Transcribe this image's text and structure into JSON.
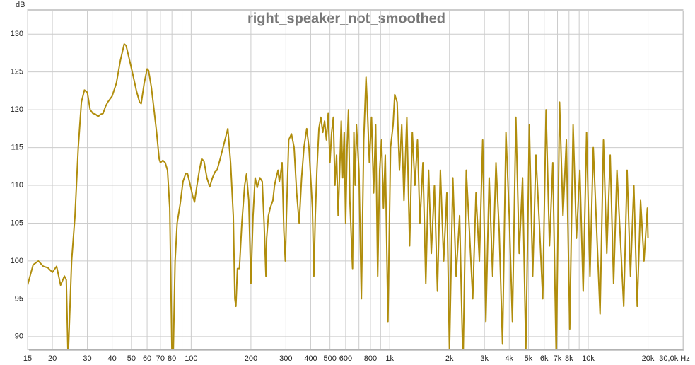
{
  "chart_data": {
    "type": "line",
    "title": "right_speaker_not_smoothed",
    "y_label": "dB",
    "xscale": "log",
    "grid": true,
    "color": "#b08d0c",
    "xlim": [
      15,
      30000
    ],
    "ylim": [
      88.3,
      133.2
    ],
    "yticks": [
      90,
      95,
      100,
      105,
      110,
      115,
      120,
      125,
      130
    ],
    "xticks": [
      15,
      20,
      30,
      40,
      50,
      60,
      70,
      80,
      100,
      200,
      300,
      400,
      500,
      600,
      800,
      {
        "value": 1000,
        "label": "1k"
      },
      {
        "value": 2000,
        "label": "2k"
      },
      {
        "value": 3000,
        "label": "3k"
      },
      {
        "value": 4000,
        "label": "4k"
      },
      {
        "value": 5000,
        "label": "5k"
      },
      {
        "value": 6000,
        "label": "6k"
      },
      {
        "value": 7000,
        "label": "7k"
      },
      {
        "value": 8000,
        "label": "8k"
      },
      {
        "value": 10000,
        "label": "10k"
      },
      {
        "value": 20000,
        "label": "20k"
      },
      {
        "value": 30000,
        "label": "30,0k Hz"
      }
    ],
    "xgrid": [
      90,
      700,
      900,
      9000
    ],
    "x": [
      15,
      16,
      17,
      18,
      19,
      20,
      21,
      22,
      23,
      23.5,
      24,
      25,
      26,
      27,
      28,
      29,
      30,
      31,
      32,
      33,
      34,
      35,
      36,
      37,
      38,
      40,
      42,
      44,
      46,
      47,
      49,
      51,
      53,
      55,
      56,
      58,
      60,
      61,
      63,
      65,
      67,
      69,
      70,
      72,
      74,
      76,
      78,
      80,
      81,
      83,
      85,
      88,
      91,
      94,
      96,
      99,
      102,
      104,
      107,
      110,
      113,
      116,
      120,
      124,
      128,
      132,
      135,
      140,
      148,
      153,
      158,
      163,
      166,
      168,
      171,
      175,
      180,
      186,
      190,
      195,
      200,
      205,
      210,
      215,
      222,
      228,
      233,
      238,
      240,
      245,
      250,
      258,
      263,
      268,
      274,
      278,
      282,
      287,
      293,
      298,
      302,
      310,
      320,
      330,
      340,
      350,
      360,
      370,
      382,
      392,
      400,
      408,
      415,
      422,
      430,
      440,
      450,
      460,
      470,
      480,
      490,
      500,
      510,
      520,
      530,
      540,
      550,
      560,
      570,
      580,
      590,
      600,
      610,
      620,
      630,
      650,
      660,
      670,
      680,
      700,
      720,
      740,
      760,
      770,
      790,
      810,
      830,
      850,
      870,
      890,
      910,
      930,
      950,
      980,
      1010,
      1040,
      1060,
      1090,
      1120,
      1150,
      1180,
      1220,
      1260,
      1300,
      1340,
      1380,
      1420,
      1470,
      1520,
      1570,
      1620,
      1680,
      1740,
      1800,
      1870,
      1940,
      2000,
      2080,
      2160,
      2250,
      2340,
      2430,
      2520,
      2620,
      2720,
      2830,
      2940,
      3050,
      3170,
      3300,
      3430,
      3560,
      3700,
      3850,
      4000,
      4150,
      4320,
      4490,
      4670,
      4850,
      5050,
      5250,
      5450,
      5670,
      5900,
      6130,
      6380,
      6630,
      6900,
      7170,
      7460,
      7760,
      8070,
      8390,
      8720,
      9070,
      9430,
      9810,
      10200,
      10600,
      11030,
      11470,
      11930,
      12400,
      12900,
      13420,
      13950,
      14510,
      15090,
      15690,
      16320,
      16970,
      17650,
      18350,
      19090,
      19850,
      20000
    ],
    "values": [
      96.8,
      99.5,
      100,
      99.3,
      99.1,
      98.5,
      99.3,
      96.8,
      98,
      97.5,
      87,
      100,
      106,
      115,
      121,
      122.6,
      122.3,
      120,
      119.5,
      119.4,
      119.1,
      119.4,
      119.5,
      120.4,
      121,
      121.8,
      123.5,
      126.5,
      128.7,
      128.5,
      126.5,
      124.5,
      122.5,
      121,
      120.8,
      123.5,
      125.4,
      125.2,
      123,
      120,
      117,
      113.5,
      113,
      113.3,
      113,
      112,
      107,
      88,
      86,
      100,
      105,
      107.5,
      110.5,
      111.6,
      111.5,
      110,
      108.5,
      107.8,
      110,
      112,
      113.5,
      113.2,
      111,
      109.8,
      111,
      111.8,
      112,
      113.5,
      116,
      117.5,
      113,
      106,
      95,
      94,
      99,
      99,
      105,
      110,
      111.5,
      108,
      97,
      106,
      111,
      109.7,
      111,
      110.5,
      105,
      98,
      103,
      106,
      107,
      108,
      110,
      111,
      112,
      110.5,
      111.5,
      113,
      104,
      100,
      106,
      116,
      116.8,
      115,
      109,
      105,
      111,
      115,
      117.5,
      115,
      111,
      107,
      98,
      106,
      112,
      117.5,
      119,
      117,
      118.5,
      116,
      119.5,
      113,
      117,
      119,
      110,
      114,
      106,
      112,
      118.5,
      111,
      117,
      105,
      115,
      120,
      108,
      99,
      117,
      110,
      118,
      112,
      95,
      116,
      124.3,
      121,
      113,
      119,
      109,
      118,
      98,
      112,
      116,
      107,
      114,
      92,
      115,
      118,
      122,
      121,
      112,
      118,
      108,
      119,
      102,
      117,
      110,
      116,
      105,
      113,
      97,
      112,
      101,
      110,
      96,
      112,
      100,
      109,
      88,
      111,
      98,
      106,
      86,
      112,
      104,
      95,
      109,
      100,
      116,
      92,
      111,
      98,
      113,
      104,
      89,
      117,
      106,
      92,
      119,
      101,
      111,
      88,
      118,
      98,
      114,
      105,
      95,
      120,
      102,
      113,
      87,
      121,
      106,
      116,
      91,
      118,
      103,
      112,
      96,
      117,
      98,
      115,
      104,
      93,
      116,
      101,
      114,
      97,
      112,
      103,
      94,
      112,
      98,
      110,
      94,
      108,
      100,
      107,
      103
    ]
  }
}
